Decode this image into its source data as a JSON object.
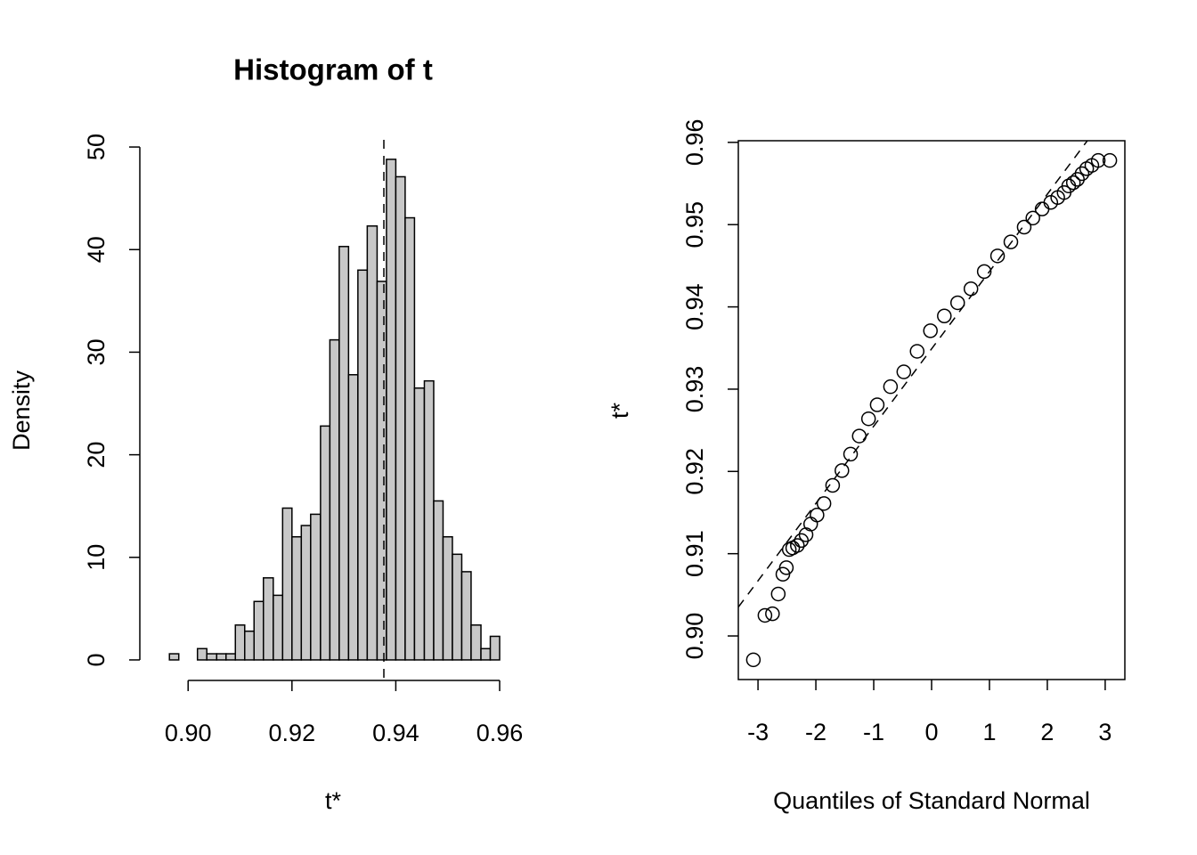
{
  "chart_data": [
    {
      "type": "histogram",
      "title": "Histogram of t",
      "xlabel": "t*",
      "ylabel": "Density",
      "bins": [
        0.8964,
        0.8982,
        0.9,
        0.9018,
        0.9036,
        0.9055,
        0.9073,
        0.9091,
        0.9109,
        0.9127,
        0.9145,
        0.9164,
        0.9182,
        0.92,
        0.9218,
        0.9236,
        0.9255,
        0.9273,
        0.9291,
        0.9309,
        0.9327,
        0.9345,
        0.9364,
        0.9382,
        0.94,
        0.9418,
        0.9436,
        0.9455,
        0.9473,
        0.9491,
        0.9509,
        0.9527,
        0.9545,
        0.9564,
        0.9582,
        0.96
      ],
      "values": [
        0.6,
        0,
        0,
        1.1,
        0.6,
        0.6,
        0.6,
        3.4,
        2.8,
        5.7,
        8.0,
        6.3,
        14.8,
        12.0,
        13.1,
        14.2,
        22.8,
        31.2,
        40.3,
        27.8,
        38.0,
        42.3,
        36.9,
        48.8,
        47.1,
        43.1,
        26.5,
        27.2,
        15.5,
        12.0,
        10.3,
        8.6,
        3.4,
        1.1,
        2.3
      ],
      "color": "#c8c8c8",
      "vline": 0.9377,
      "xlim": [
        0.8907,
        0.9624
      ],
      "xticks": [
        {
          "value": 0.9,
          "label": "0.90"
        },
        0.92,
        0.94,
        0.96
      ],
      "ylim": [
        -2,
        50.7
      ],
      "yticks": [
        0,
        10,
        20,
        30,
        40,
        50
      ]
    },
    {
      "type": "scatter",
      "xlabel": "Quantiles of Standard Normal",
      "ylabel": "t*",
      "x": [
        -3.08,
        -2.88,
        -2.75,
        -2.65,
        -2.57,
        -2.51,
        -2.46,
        -2.4,
        -2.32,
        -2.25,
        -2.17,
        -2.09,
        -1.98,
        -1.86,
        -1.71,
        -1.55,
        -1.4,
        -1.25,
        -1.09,
        -0.94,
        -0.71,
        -0.48,
        -0.25,
        -0.02,
        0.22,
        0.45,
        0.68,
        0.91,
        1.14,
        1.37,
        1.6,
        1.75,
        1.91,
        2.06,
        2.18,
        2.29,
        2.37,
        2.45,
        2.52,
        2.6,
        2.68,
        2.77,
        2.88,
        3.08
      ],
      "values": [
        0.8971,
        0.9025,
        0.9027,
        0.9051,
        0.9075,
        0.9083,
        0.9105,
        0.9107,
        0.911,
        0.9116,
        0.9123,
        0.9136,
        0.9147,
        0.9161,
        0.9183,
        0.9201,
        0.9221,
        0.9243,
        0.9264,
        0.9281,
        0.9303,
        0.9321,
        0.9346,
        0.9371,
        0.9389,
        0.9405,
        0.9422,
        0.9443,
        0.9462,
        0.9479,
        0.9497,
        0.9508,
        0.9519,
        0.9527,
        0.9533,
        0.9539,
        0.9547,
        0.9551,
        0.9555,
        0.9562,
        0.9568,
        0.9572,
        0.9578,
        0.9578
      ],
      "abline": {
        "intercept": 0.9349,
        "slope": 0.0094
      },
      "xlim": [
        -3.34,
        3.34
      ],
      "xticks": [
        -3,
        -2,
        -1,
        0,
        1,
        2,
        3
      ],
      "ylim": [
        0.8947,
        0.9602
      ],
      "yticks": [
        {
          "value": 0.9,
          "label": "0.90"
        },
        0.91,
        0.92,
        0.93,
        0.94,
        0.95,
        0.96
      ]
    }
  ]
}
